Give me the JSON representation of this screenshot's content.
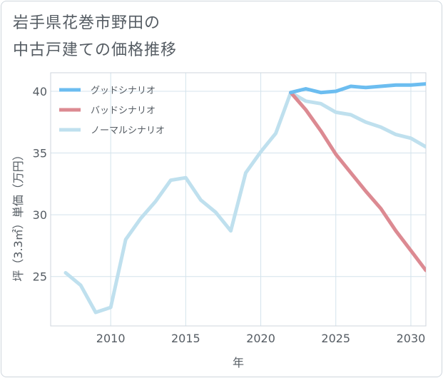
{
  "title": {
    "line1": "岩手県花巻市野田の",
    "line2": "中古戸建ての価格推移"
  },
  "chart_data": {
    "type": "line",
    "xlabel": "年",
    "ylabel": "坪（3.3㎡）単価（万円）",
    "xlim": [
      2006,
      2031
    ],
    "ylim": [
      21,
      41.5
    ],
    "x_ticks": [
      2010,
      2015,
      2020,
      2025,
      2030
    ],
    "y_ticks": [
      25,
      30,
      35,
      40
    ],
    "x_tick_labels": [
      "2010",
      "2015",
      "2020",
      "2025",
      "2030"
    ],
    "y_tick_labels": [
      "25",
      "30",
      "35",
      "40"
    ],
    "grid": true,
    "legend_position": "top-left",
    "series": [
      {
        "name": "グッドシナリオ",
        "color": "#6cbdf0",
        "x": [
          2022,
          2023,
          2024,
          2025,
          2026,
          2027,
          2028,
          2029,
          2030,
          2031
        ],
        "y": [
          39.9,
          40.2,
          39.9,
          40.0,
          40.4,
          40.3,
          40.4,
          40.5,
          40.5,
          40.6
        ]
      },
      {
        "name": "バッドシナリオ",
        "color": "#dc8a92",
        "x": [
          2022,
          2023,
          2024,
          2025,
          2026,
          2027,
          2028,
          2029,
          2030,
          2031
        ],
        "y": [
          39.9,
          38.5,
          36.8,
          34.9,
          33.4,
          31.9,
          30.5,
          28.7,
          27.1,
          25.5
        ]
      },
      {
        "name": "ノーマルシナリオ",
        "color": "#bfe0ee",
        "x": [
          2007,
          2008,
          2009,
          2010,
          2011,
          2012,
          2013,
          2014,
          2015,
          2016,
          2017,
          2018,
          2019,
          2020,
          2021,
          2022,
          2023,
          2024,
          2025,
          2026,
          2027,
          2028,
          2029,
          2030,
          2031
        ],
        "y": [
          25.3,
          24.3,
          22.1,
          22.5,
          28.0,
          29.7,
          31.1,
          32.8,
          33.0,
          31.2,
          30.2,
          28.7,
          33.4,
          35.1,
          36.6,
          39.9,
          39.2,
          39.0,
          38.3,
          38.1,
          37.5,
          37.1,
          36.5,
          36.2,
          35.5
        ]
      }
    ]
  }
}
